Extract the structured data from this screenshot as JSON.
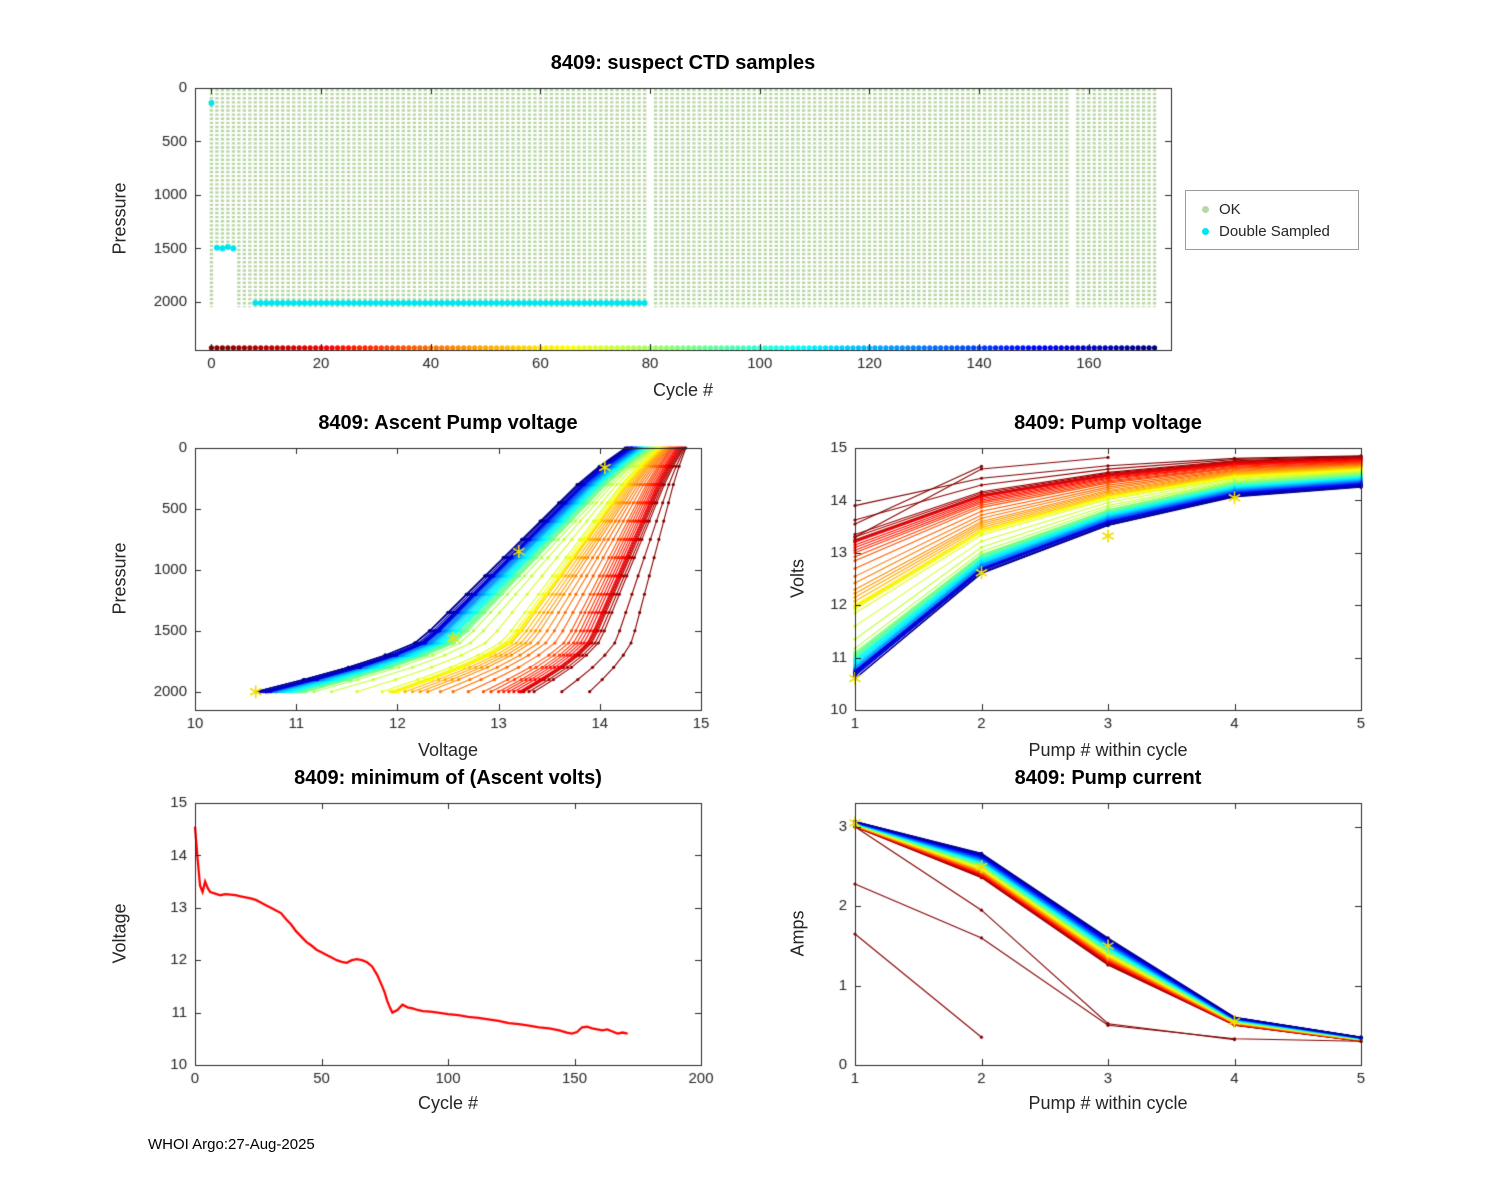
{
  "figure": {
    "footer": "WHOI Argo:27-Aug-2025",
    "float_id": "8409"
  },
  "colors": {
    "axis": "#262626",
    "ok_green": "#b7d7a5",
    "double_sampled_cyan": "#00e5ee",
    "min_volts_red": "#ff0000",
    "highlight_star_yellow": "#f0df00"
  },
  "chart_data": [
    {
      "id": "ctd",
      "type": "scatter",
      "title": "8409: suspect CTD samples",
      "xlabel": "Cycle #",
      "ylabel": "Pressure",
      "xlim": [
        -3,
        175
      ],
      "ylim": [
        0,
        2450
      ],
      "y_inverted": true,
      "xticks": [
        0,
        20,
        40,
        60,
        80,
        100,
        120,
        140,
        160
      ],
      "yticks": [
        0,
        500,
        1000,
        1500,
        2000
      ],
      "n_cycles": 172,
      "profile_top_pressure": 8,
      "profile_bottom_pressure_default": 2050,
      "shallow_profiles": [
        {
          "cycle": 1,
          "bottom": 1500
        },
        {
          "cycle": 2,
          "bottom": 1490
        },
        {
          "cycle": 3,
          "bottom": 1500
        },
        {
          "cycle": 4,
          "bottom": 1495
        }
      ],
      "missing_cycles": [
        80,
        157
      ],
      "double_sampled_deep": {
        "from": 8,
        "to": 79,
        "pressure": 2010
      },
      "double_sampled_points": [
        [
          0,
          140
        ],
        [
          1,
          1495
        ],
        [
          2,
          1500
        ],
        [
          3,
          1488
        ],
        [
          4,
          1500
        ]
      ],
      "cycle_marker_row_pressure": 2430,
      "legend": [
        {
          "label": "OK",
          "color": "#b7d7a5"
        },
        {
          "label": "Double Sampled",
          "color": "#00e5ee"
        }
      ]
    },
    {
      "id": "ascent",
      "type": "line",
      "title": "8409: Ascent Pump voltage",
      "xlabel": "Voltage",
      "ylabel": "Pressure",
      "xlim": [
        10,
        15
      ],
      "ylim": [
        0,
        2150
      ],
      "y_inverted": true,
      "xticks": [
        10,
        11,
        12,
        13,
        14,
        15
      ],
      "yticks": [
        0,
        500,
        1000,
        1500,
        2000
      ],
      "pressure_grid": [
        2000,
        1900,
        1800,
        1700,
        1600,
        1500,
        1350,
        1200,
        1050,
        900,
        750,
        600,
        450,
        300,
        150,
        0
      ],
      "rise_fraction": [
        0,
        0.13,
        0.25,
        0.35,
        0.43,
        0.47,
        0.52,
        0.57,
        0.62,
        0.67,
        0.72,
        0.77,
        0.82,
        0.87,
        0.93,
        1
      ],
      "series": [
        {
          "c": 0,
          "vmin": 13.9,
          "vtop": 14.85
        },
        {
          "c": 5,
          "vmin": 13.35,
          "vtop": 14.83
        },
        {
          "c": 10,
          "vmin": 13.25,
          "vtop": 14.81
        },
        {
          "c": 15,
          "vmin": 13.22,
          "vtop": 14.79
        },
        {
          "c": 20,
          "vmin": 13.2,
          "vtop": 14.77
        },
        {
          "c": 25,
          "vmin": 13.1,
          "vtop": 14.75
        },
        {
          "c": 30,
          "vmin": 13.0,
          "vtop": 14.72
        },
        {
          "c": 35,
          "vmin": 12.85,
          "vtop": 14.7
        },
        {
          "c": 40,
          "vmin": 12.55,
          "vtop": 14.68
        },
        {
          "c": 45,
          "vmin": 12.3,
          "vtop": 14.66
        },
        {
          "c": 50,
          "vmin": 12.15,
          "vtop": 14.64
        },
        {
          "c": 55,
          "vmin": 12.0,
          "vtop": 14.62
        },
        {
          "c": 60,
          "vmin": 11.95,
          "vtop": 14.6
        },
        {
          "c": 65,
          "vmin": 12.0,
          "vtop": 14.58
        },
        {
          "c": 70,
          "vmin": 11.85,
          "vtop": 14.56
        },
        {
          "c": 75,
          "vmin": 11.35,
          "vtop": 14.54
        },
        {
          "c": 80,
          "vmin": 11.0,
          "vtop": 14.52
        },
        {
          "c": 85,
          "vmin": 11.1,
          "vtop": 14.5
        },
        {
          "c": 90,
          "vmin": 11.05,
          "vtop": 14.48
        },
        {
          "c": 95,
          "vmin": 11.0,
          "vtop": 14.46
        },
        {
          "c": 100,
          "vmin": 10.95,
          "vtop": 14.45
        },
        {
          "c": 105,
          "vmin": 10.95,
          "vtop": 14.43
        },
        {
          "c": 110,
          "vmin": 10.9,
          "vtop": 14.42
        },
        {
          "c": 115,
          "vmin": 10.85,
          "vtop": 14.4
        },
        {
          "c": 120,
          "vmin": 10.8,
          "vtop": 14.39
        },
        {
          "c": 125,
          "vmin": 10.8,
          "vtop": 14.37
        },
        {
          "c": 130,
          "vmin": 10.75,
          "vtop": 14.36
        },
        {
          "c": 135,
          "vmin": 10.7,
          "vtop": 14.35
        },
        {
          "c": 140,
          "vmin": 10.7,
          "vtop": 14.33
        },
        {
          "c": 145,
          "vmin": 10.65,
          "vtop": 14.32
        },
        {
          "c": 150,
          "vmin": 10.7,
          "vtop": 14.31
        },
        {
          "c": 155,
          "vmin": 10.75,
          "vtop": 14.3
        },
        {
          "c": 160,
          "vmin": 10.7,
          "vtop": 14.28
        },
        {
          "c": 165,
          "vmin": 10.6,
          "vtop": 14.27
        },
        {
          "c": 170,
          "vmin": 10.6,
          "vtop": 14.25
        }
      ],
      "highlight_markers": [
        [
          10.6,
          2000
        ],
        [
          12.55,
          1560
        ],
        [
          13.2,
          850
        ],
        [
          14.05,
          160
        ]
      ]
    },
    {
      "id": "pumpvolts",
      "type": "line",
      "title": "8409: Pump voltage",
      "xlabel": "Pump # within cycle",
      "ylabel": "Volts",
      "xlim": [
        1,
        5
      ],
      "ylim": [
        10,
        15
      ],
      "xticks": [
        1,
        2,
        3,
        4,
        5
      ],
      "yticks": [
        10,
        11,
        12,
        13,
        14,
        15
      ],
      "pump_rise_fraction": [
        0,
        0.55,
        0.8,
        0.95,
        1
      ],
      "series_source": "ascent",
      "extra_series": [
        {
          "c": 0,
          "v": [
            13.55,
            14.65
          ]
        },
        {
          "c": 1,
          "v": [
            13.3,
            14.6,
            14.82
          ]
        }
      ],
      "highlight_markers": [
        [
          1,
          10.6
        ],
        [
          2,
          12.62
        ],
        [
          3,
          13.32
        ],
        [
          4,
          14.05
        ]
      ]
    },
    {
      "id": "minvolts",
      "type": "line",
      "title": "8409: minimum of (Ascent volts)",
      "xlabel": "Cycle #",
      "ylabel": "Voltage",
      "xlim": [
        0,
        200
      ],
      "ylim": [
        10,
        15
      ],
      "xticks": [
        0,
        50,
        100,
        150,
        200
      ],
      "yticks": [
        10,
        11,
        12,
        13,
        14,
        15
      ],
      "line_color": "#ff0000",
      "x": [
        0,
        1,
        2,
        3,
        4,
        5,
        6,
        8,
        10,
        12,
        14,
        16,
        18,
        20,
        22,
        24,
        26,
        28,
        30,
        32,
        34,
        36,
        38,
        40,
        42,
        44,
        46,
        48,
        50,
        52,
        54,
        56,
        58,
        60,
        62,
        64,
        66,
        68,
        70,
        72,
        74,
        75,
        76,
        77,
        78,
        80,
        82,
        84,
        86,
        88,
        90,
        93,
        96,
        100,
        104,
        108,
        112,
        116,
        120,
        124,
        128,
        132,
        136,
        140,
        144,
        147,
        149,
        151,
        153,
        155,
        157,
        159,
        161,
        163,
        165,
        167,
        169,
        171
      ],
      "y": [
        14.55,
        13.95,
        13.42,
        13.3,
        13.5,
        13.38,
        13.3,
        13.27,
        13.24,
        13.26,
        13.25,
        13.24,
        13.22,
        13.2,
        13.18,
        13.15,
        13.1,
        13.05,
        13.0,
        12.95,
        12.9,
        12.78,
        12.68,
        12.55,
        12.45,
        12.35,
        12.28,
        12.2,
        12.15,
        12.1,
        12.05,
        12.0,
        11.97,
        11.95,
        12.0,
        12.02,
        12.0,
        11.96,
        11.88,
        11.72,
        11.5,
        11.38,
        11.22,
        11.1,
        11.0,
        11.05,
        11.15,
        11.1,
        11.08,
        11.05,
        11.03,
        11.02,
        11.0,
        10.97,
        10.95,
        10.92,
        10.9,
        10.87,
        10.84,
        10.8,
        10.78,
        10.75,
        10.72,
        10.7,
        10.66,
        10.62,
        10.6,
        10.63,
        10.72,
        10.73,
        10.7,
        10.68,
        10.66,
        10.68,
        10.64,
        10.6,
        10.62,
        10.6
      ]
    },
    {
      "id": "pumpamps",
      "type": "line",
      "title": "8409: Pump current",
      "xlabel": "Pump # within cycle",
      "ylabel": "Amps",
      "xlim": [
        1,
        5
      ],
      "ylim": [
        0,
        3.3
      ],
      "xticks": [
        1,
        2,
        3,
        4,
        5
      ],
      "yticks": [
        0,
        1,
        2,
        3
      ],
      "series_source": "ascent",
      "base_amps": [
        3.0,
        2.36,
        1.26,
        0.5,
        0.3
      ],
      "amps_slope_per_cycle": [
        0.0004,
        0.0018,
        0.002,
        0.0006,
        0.0003
      ],
      "outlier_series": [
        {
          "c": 1,
          "v": [
            2.28,
            1.6,
            0.5,
            0.33,
            0.3
          ]
        },
        {
          "c": 2,
          "v": [
            1.65,
            0.35
          ]
        },
        {
          "c": 0,
          "v": [
            3.0,
            1.95,
            0.52,
            0.32
          ]
        }
      ],
      "highlight_markers": [
        [
          1,
          3.05
        ],
        [
          2,
          2.5
        ],
        [
          3,
          1.5
        ],
        [
          4,
          0.55
        ]
      ]
    }
  ]
}
